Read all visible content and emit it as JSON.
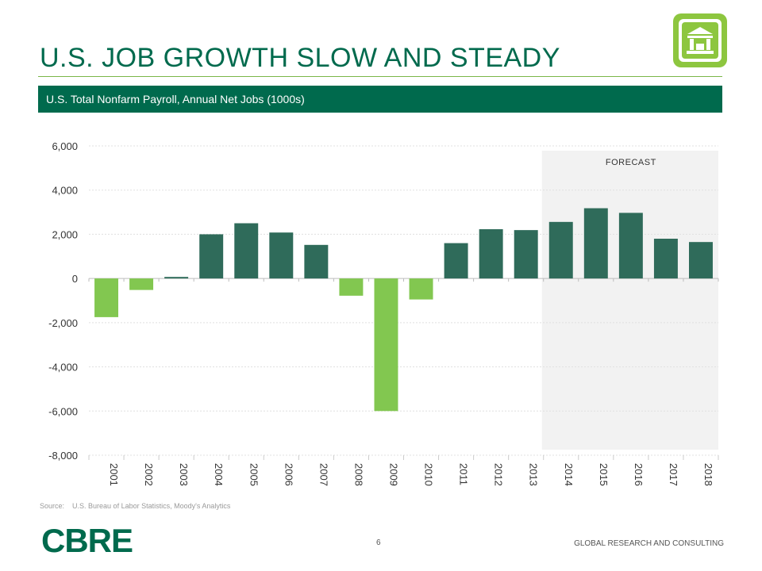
{
  "slide": {
    "title": "U.S. JOB GROWTH SLOW AND STEADY",
    "subtitle": "U.S. Total Nonfarm Payroll, Annual Net Jobs (1000s)",
    "source_label": "Source:",
    "source_text": "U.S. Bureau of Labor Statistics, Moody's Analytics",
    "logo_text": "CBRE",
    "page_number": "6",
    "footer_text": "GLOBAL RESEARCH AND CONSULTING"
  },
  "colors": {
    "brand_green": "#006a4d",
    "actual_positive": "#2f6b5a",
    "negative": "#82c750",
    "forecast_shade": "#f2f2f2",
    "badge_green": "#8dc63f"
  },
  "icons": {
    "badge": "bank-building-icon"
  },
  "chart_data": {
    "type": "bar",
    "title": "U.S. Total Nonfarm Payroll, Annual Net Jobs (1000s)",
    "categories": [
      "2001",
      "2002",
      "2003",
      "2004",
      "2005",
      "2006",
      "2007",
      "2008",
      "2009",
      "2010",
      "2011",
      "2012",
      "2013",
      "2014",
      "2015",
      "2016",
      "2017",
      "2018"
    ],
    "values": [
      -1750,
      -520,
      70,
      2000,
      2500,
      2080,
      1520,
      -780,
      -6000,
      -950,
      1600,
      2230,
      2190,
      2560,
      3180,
      2970,
      1800,
      1650
    ],
    "ylim": [
      -8000,
      6000
    ],
    "yticks": [
      6000,
      4000,
      2000,
      0,
      -2000,
      -4000,
      -6000,
      -8000
    ],
    "ytick_labels": [
      "6,000",
      "4,000",
      "2,000",
      "0",
      "-2,000",
      "-4,000",
      "-6,000",
      "-8,000"
    ],
    "forecast_label": "FORECAST",
    "forecast_start": "2014",
    "grid": true,
    "xlabel": "",
    "ylabel": ""
  }
}
